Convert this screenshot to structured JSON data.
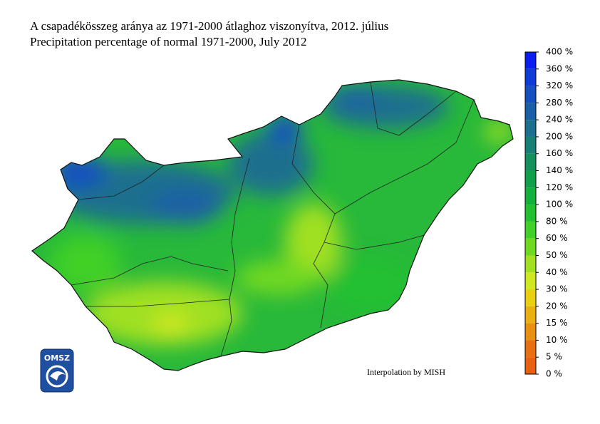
{
  "title": [
    "A csapadékösszeg aránya az 1971-2000 átlaghoz viszonyítva, 2012. július",
    "Precipitation percentage of normal 1971-2000, July 2012"
  ],
  "legend": {
    "labels": [
      "400 %",
      "360 %",
      "320 %",
      "280 %",
      "240 %",
      "200 %",
      "160 %",
      "140 %",
      "120 %",
      "100 %",
      "80 %",
      "60 %",
      "50 %",
      "40 %",
      "30 %",
      "20 %",
      "15 %",
      "10 %",
      "5 %",
      "0 %"
    ],
    "colors": [
      "#0a1ef0",
      "#0f3bd8",
      "#1650c0",
      "#1a60a6",
      "#1a708e",
      "#178076",
      "#14905c",
      "#10a04a",
      "#12b03c",
      "#20c030",
      "#40d028",
      "#70d820",
      "#a0e020",
      "#d0e820",
      "#e8d010",
      "#e8b010",
      "#e89010",
      "#e87010",
      "#e86010"
    ]
  },
  "logo": "OMSZ",
  "credit": "Interpolation by MISH"
}
